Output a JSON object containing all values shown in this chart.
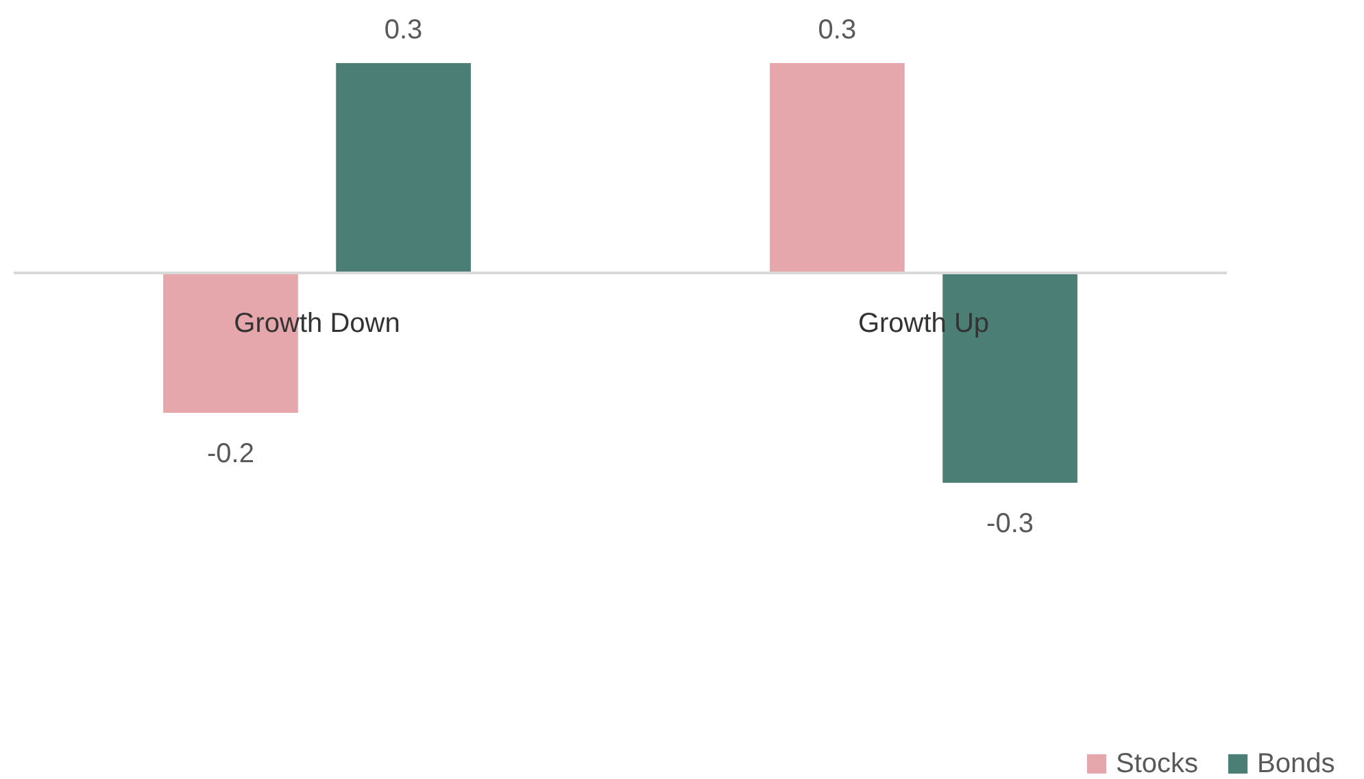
{
  "chart_data": {
    "type": "bar",
    "categories": [
      "Growth Down",
      "Growth Up"
    ],
    "series": [
      {
        "name": "Stocks",
        "color": "#e5a7ab",
        "values": [
          -0.2,
          0.3
        ]
      },
      {
        "name": "Bonds",
        "color": "#4b7f75",
        "values": [
          0.3,
          -0.3
        ]
      }
    ],
    "data_labels": true,
    "legend": "bottom right",
    "grid": false
  }
}
